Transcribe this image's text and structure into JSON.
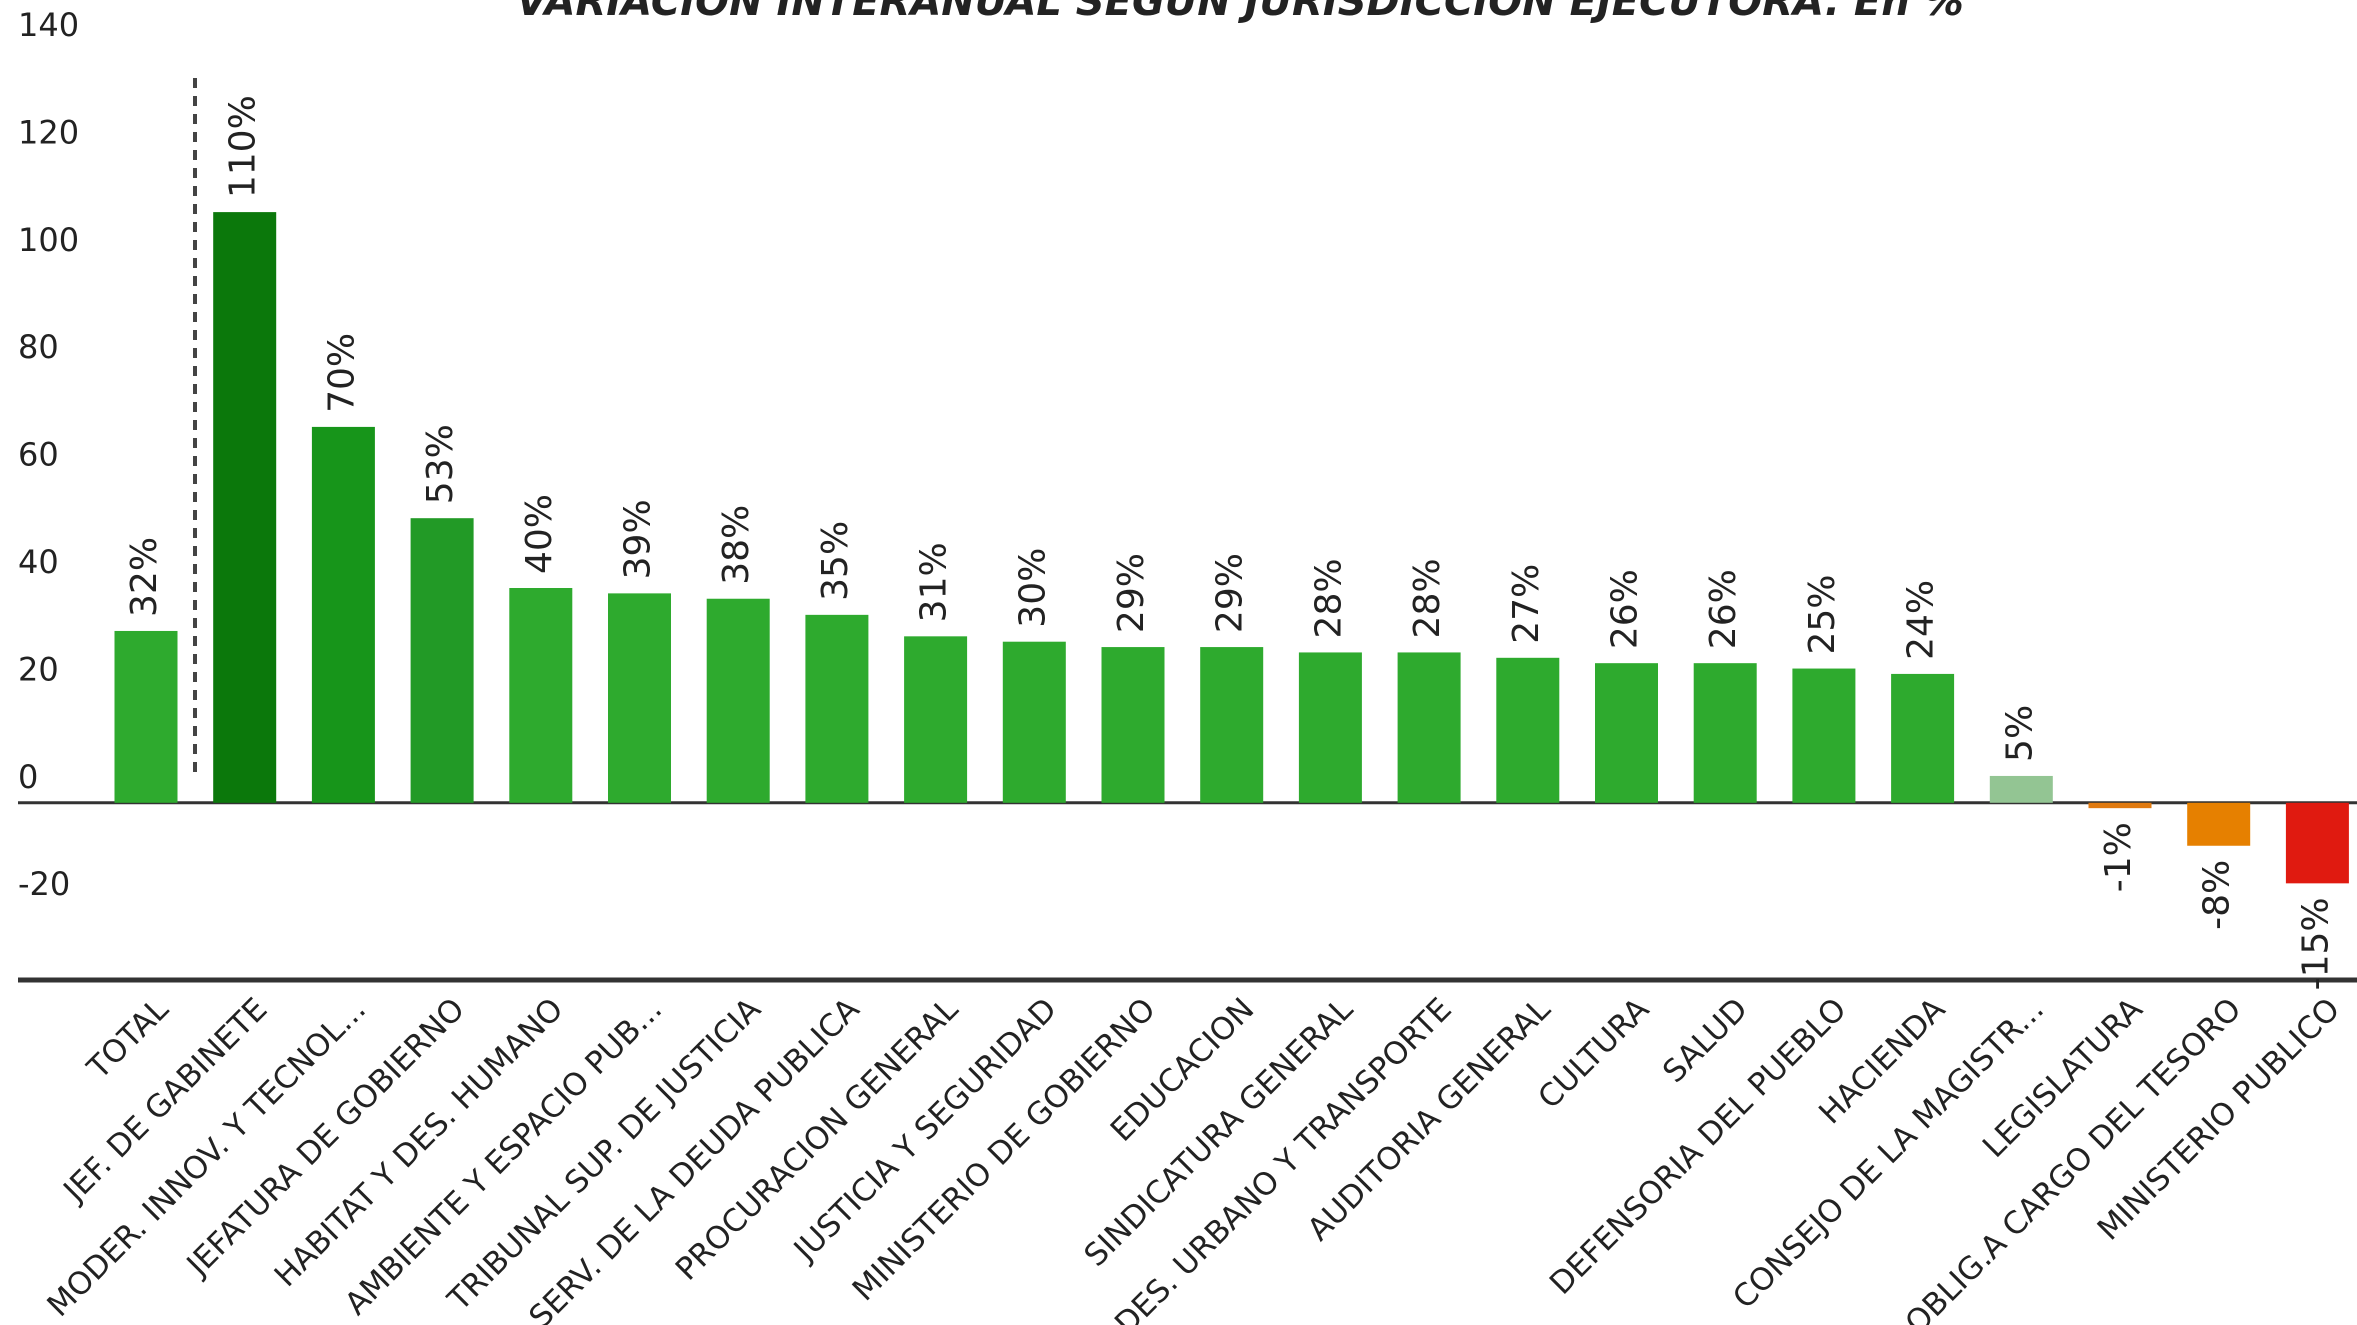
{
  "chart_data": {
    "type": "bar",
    "title": "VARIACION INTERANUAL SEGUN JURISDICCION EJECUTORA. En %",
    "categories": [
      "TOTAL",
      "JEF. DE GABINETE",
      "MODER. INNOV. Y TECNOL...",
      "JEFATURA DE GOBIERNO",
      "HABITAT Y DES. HUMANO",
      "AMBIENTE Y ESPACIO PUB...",
      "TRIBUNAL SUP. DE JUSTICIA",
      "SERV. DE LA DEUDA PUBLICA",
      "PROCURACION GENERAL",
      "JUSTICIA Y SEGURIDAD",
      "MINISTERIO DE GOBIERNO",
      "EDUCACION",
      "SINDICATURA GENERAL",
      "DES. URBANO Y TRANSPORTE",
      "AUDITORIA GENERAL",
      "CULTURA",
      "SALUD",
      "DEFENSORIA DEL PUEBLO",
      "HACIENDA",
      "CONSEJO DE LA MAGISTR...",
      "LEGISLATURA",
      "OBLIG.A CARGO DEL TESORO",
      "MINISTERIO PUBLICO"
    ],
    "values": [
      32,
      110,
      70,
      53,
      40,
      39,
      38,
      35,
      31,
      30,
      29,
      29,
      28,
      28,
      27,
      26,
      26,
      25,
      24,
      5,
      -1,
      -8,
      -15
    ],
    "value_labels": [
      "32%",
      "110%",
      "70%",
      "53%",
      "40%",
      "39%",
      "38%",
      "35%",
      "31%",
      "30%",
      "29%",
      "29%",
      "28%",
      "28%",
      "27%",
      "26%",
      "26%",
      "25%",
      "24%",
      "5%",
      "-1%",
      "-8%",
      "-15%"
    ],
    "colors": [
      "#2eaa2e",
      "#0b780b",
      "#17951a",
      "#229a26",
      "#2eaa2e",
      "#2eaa2e",
      "#2eaa2e",
      "#2eaa2e",
      "#2eaa2e",
      "#2eaa2e",
      "#2eaa2e",
      "#2eaa2e",
      "#2eaa2e",
      "#2eaa2e",
      "#2eaa2e",
      "#2eaa2e",
      "#2eaa2e",
      "#2eaa2e",
      "#2eaa2e",
      "#93c593",
      "#e07a10",
      "#e68000",
      "#e01a10"
    ],
    "ylim": [
      -33,
      149.5
    ],
    "yticks": [
      -20,
      0,
      20,
      40,
      60,
      80,
      100,
      120,
      140
    ]
  }
}
